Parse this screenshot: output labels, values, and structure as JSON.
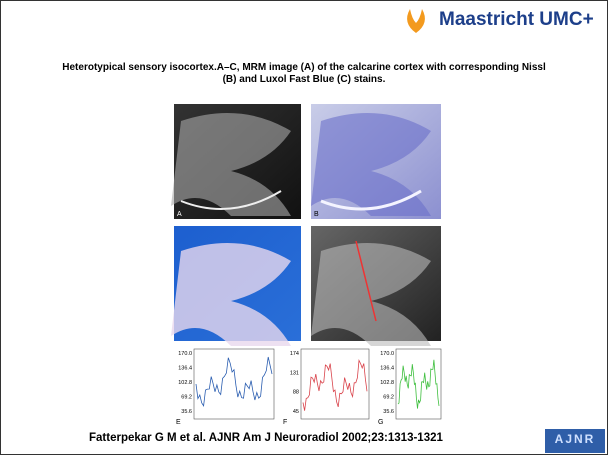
{
  "header": {
    "logo": "Maastricht UMC+"
  },
  "title": "Heterotypical sensory isocortex.A–C, MRM image (A) of the calcarine cortex with corresponding Nissl (B) and Luxol Fast Blue (C) stains.",
  "images": [
    {
      "label": "A"
    },
    {
      "label": "B"
    }
  ],
  "graphs": [
    {
      "label": "E",
      "yticks": [
        "170.0",
        "136.4",
        "102.8",
        "69.2",
        "35.6"
      ]
    },
    {
      "label": "F",
      "yticks": [
        "174",
        "131",
        "88",
        "45"
      ]
    },
    {
      "label": "G",
      "yticks": [
        "170.0",
        "136.4",
        "102.8",
        "69.2",
        "35.6"
      ]
    }
  ],
  "citation": "Fatterpekar G M et al. AJNR Am J Neuroradiol 2002;23:1313-1321",
  "footer_logo": "AJNR"
}
